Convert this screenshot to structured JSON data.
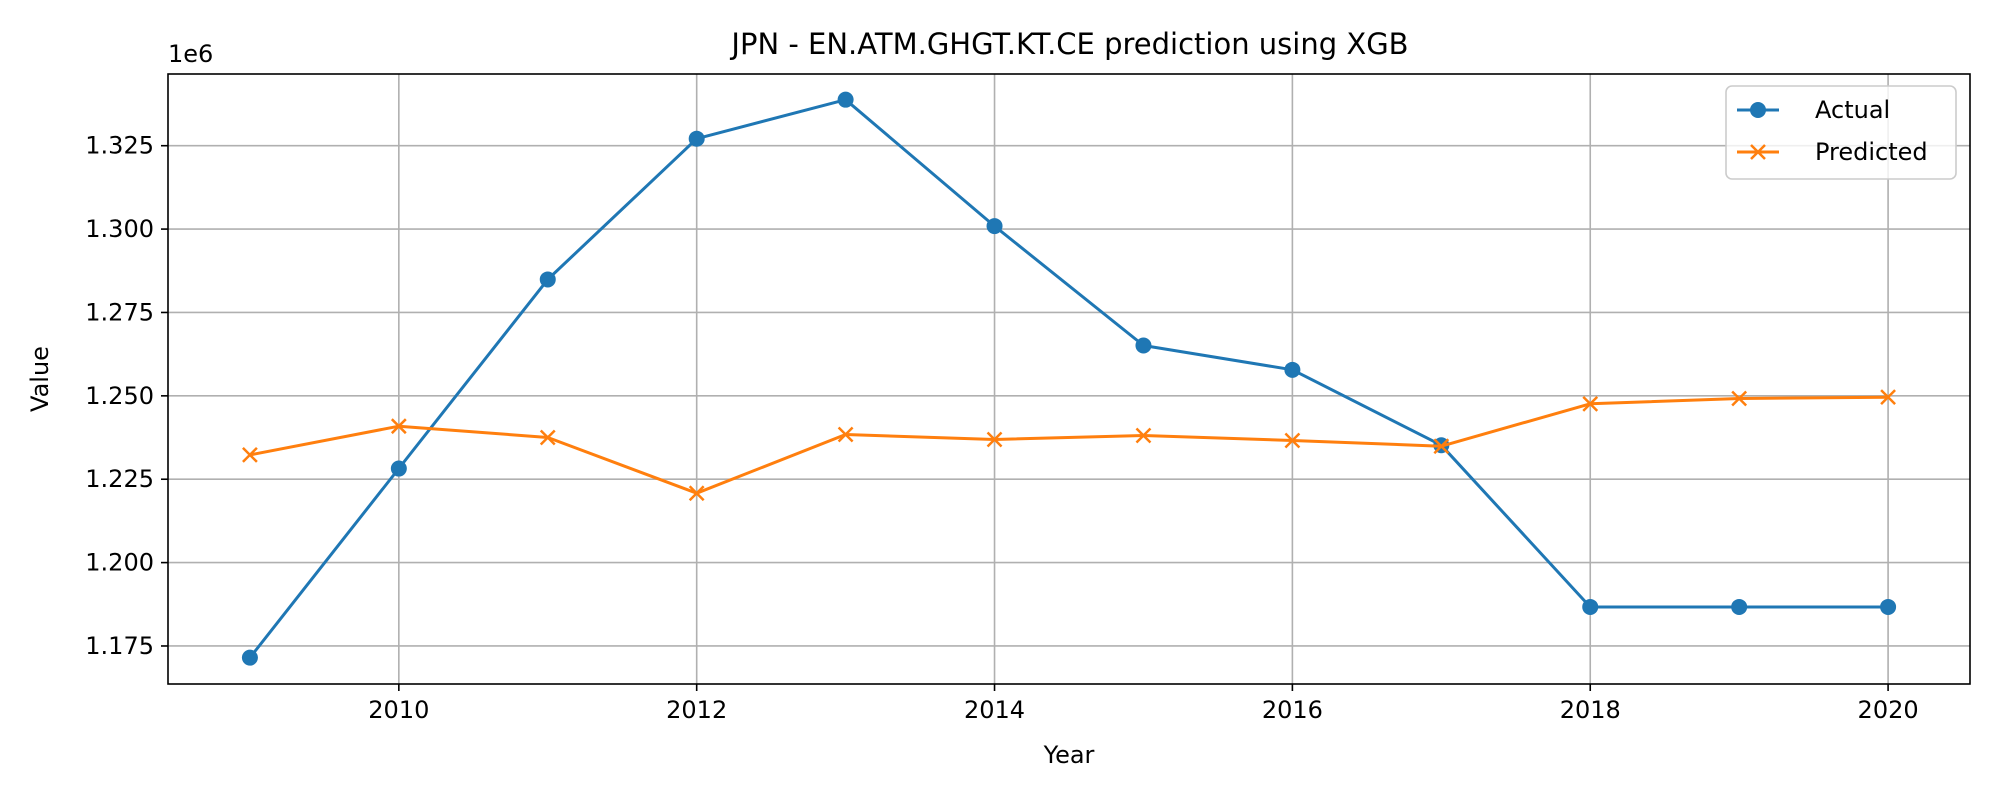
{
  "chart_data": {
    "type": "line",
    "title": "JPN - EN.ATM.GHGT.KT.CE prediction using XGB",
    "xlabel": "Year",
    "ylabel": "Value",
    "y_offset_label": "1e6",
    "x": [
      2009,
      2010,
      2011,
      2012,
      2013,
      2014,
      2015,
      2016,
      2017,
      2018,
      2019,
      2020
    ],
    "xlim": [
      2008.45,
      2020.55
    ],
    "ylim": [
      1.1636,
      1.3465
    ],
    "x_ticks": [
      2010,
      2012,
      2014,
      2016,
      2018,
      2020
    ],
    "y_ticks": [
      1.175,
      1.2,
      1.225,
      1.25,
      1.275,
      1.3,
      1.325
    ],
    "y_tick_labels": [
      "1.175",
      "1.200",
      "1.225",
      "1.250",
      "1.275",
      "1.300",
      "1.325"
    ],
    "grid": true,
    "legend_position": "top-right",
    "series": [
      {
        "name": "Actual",
        "marker": "circle",
        "color": "#1f77b4",
        "values": [
          1.1715,
          1.2282,
          1.2849,
          1.3271,
          1.3388,
          1.3009,
          1.2651,
          1.2578,
          1.2352,
          1.1867,
          1.1867,
          1.1867
        ]
      },
      {
        "name": "Predicted",
        "marker": "x",
        "color": "#ff7f0e",
        "values": [
          1.2323,
          1.2409,
          1.2375,
          1.2208,
          1.2384,
          1.2369,
          1.2381,
          1.2366,
          1.2349,
          1.2476,
          1.2492,
          1.2496
        ]
      }
    ]
  }
}
